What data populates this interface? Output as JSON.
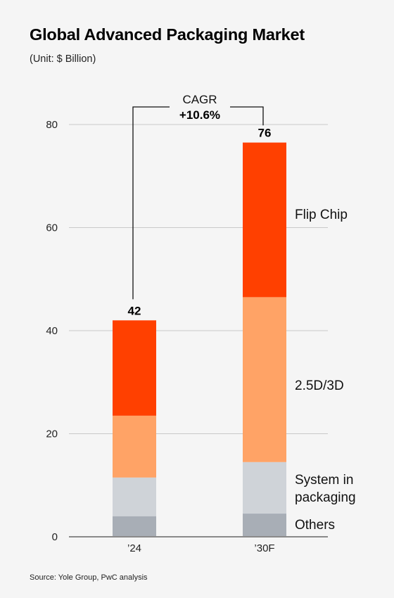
{
  "header": {
    "title": "Global Advanced Packaging Market",
    "subtitle": "(Unit: $ Billion)"
  },
  "footer": {
    "source": "Source: Yole Group, PwC analysis"
  },
  "annotation": {
    "label": "CAGR",
    "value": "+10.6%"
  },
  "colors": {
    "flip_chip": "#ff4000",
    "d25_3d": "#ffa366",
    "system_in_packaging": "#cfd3d8",
    "others": "#a8aeb6",
    "grid": "#c9c9c9",
    "axis": "#8a8a8a"
  },
  "chart_data": {
    "type": "bar",
    "stacked": true,
    "title": "Global Advanced Packaging Market",
    "subtitle": "(Unit: $ Billion)",
    "categories": [
      "’24",
      "’30F"
    ],
    "ylim": [
      0,
      80
    ],
    "yticks": [
      "0",
      "20",
      "40",
      "60",
      "80"
    ],
    "grid": true,
    "totals": [
      "42",
      "76"
    ],
    "series": [
      {
        "name": "Others",
        "values": [
          4,
          4.5
        ]
      },
      {
        "name": "System in packaging",
        "values": [
          7.5,
          10
        ]
      },
      {
        "name": "2.5D/3D",
        "values": [
          12,
          32
        ]
      },
      {
        "name": "Flip Chip",
        "values": [
          18.5,
          30
        ]
      }
    ],
    "series_labels": [
      "Others",
      "System in packaging",
      "2.5D/3D",
      "Flip Chip"
    ]
  }
}
